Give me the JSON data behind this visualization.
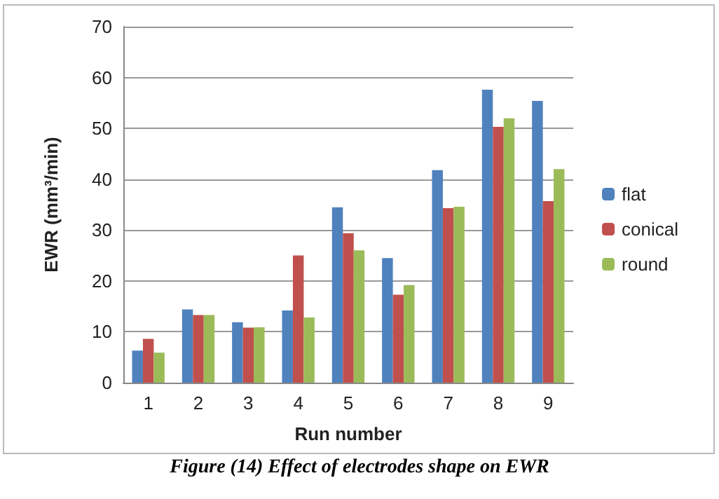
{
  "chart_data": {
    "type": "bar",
    "xlabel": "Run number",
    "ylabel": "EWR (mm³/min)",
    "annotations": [
      "Figure (14) Effect of electrodes shape on EWR"
    ],
    "categories": [
      "1",
      "2",
      "3",
      "4",
      "5",
      "6",
      "7",
      "8",
      "9"
    ],
    "series": [
      {
        "name": "flat",
        "color": "#4f81bd",
        "values": [
          6.3,
          14.4,
          11.9,
          14.2,
          34.5,
          24.5,
          41.8,
          57.6,
          55.4
        ]
      },
      {
        "name": "conical",
        "color": "#c0504d",
        "values": [
          8.6,
          13.3,
          10.8,
          25,
          29.4,
          17.3,
          34.3,
          50.3,
          35.7
        ]
      },
      {
        "name": "round",
        "color": "#9bbb59",
        "values": [
          5.9,
          13.3,
          10.9,
          12.8,
          26,
          19.2,
          34.6,
          52,
          42
        ]
      }
    ],
    "ylim": [
      0,
      70
    ],
    "yticks": [
      0,
      10,
      20,
      30,
      40,
      50,
      60,
      70
    ],
    "grid": "y",
    "legend": "right"
  }
}
